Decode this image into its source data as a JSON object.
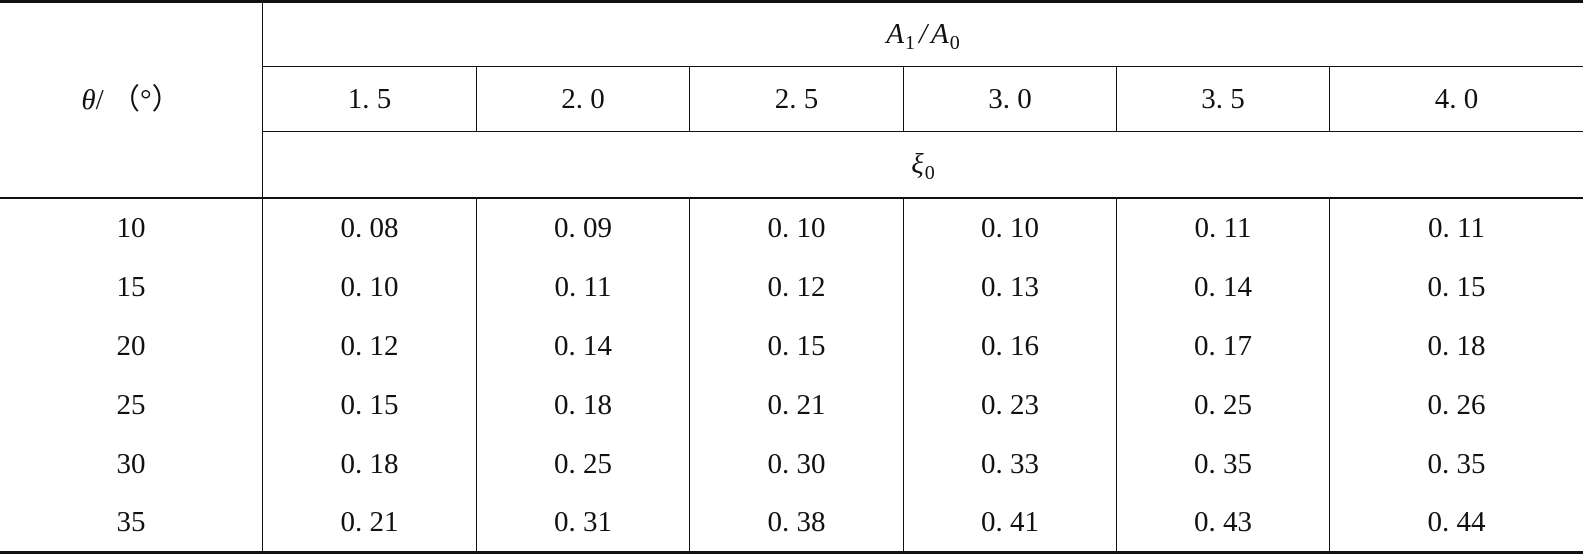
{
  "table": {
    "row_header": {
      "symbol": "θ",
      "unit": "/ （°）"
    },
    "ratio_header": {
      "numerator_symbol": "A",
      "numerator_subscript": "1",
      "slash": "/",
      "denominator_symbol": "A",
      "denominator_subscript": "0"
    },
    "coefficient_header": {
      "symbol": "ξ",
      "subscript": "0"
    },
    "columns": [
      "1. 5",
      "2. 0",
      "2. 5",
      "3. 0",
      "3. 5",
      "4. 0"
    ],
    "rows": [
      {
        "theta": "10",
        "values": [
          "0. 08",
          "0. 09",
          "0. 10",
          "0. 10",
          "0. 11",
          "0. 11"
        ]
      },
      {
        "theta": "15",
        "values": [
          "0. 10",
          "0. 11",
          "0. 12",
          "0. 13",
          "0. 14",
          "0. 15"
        ]
      },
      {
        "theta": "20",
        "values": [
          "0. 12",
          "0. 14",
          "0. 15",
          "0. 16",
          "0. 17",
          "0. 18"
        ]
      },
      {
        "theta": "25",
        "values": [
          "0. 15",
          "0. 18",
          "0. 21",
          "0. 23",
          "0. 25",
          "0. 26"
        ]
      },
      {
        "theta": "30",
        "values": [
          "0. 18",
          "0. 25",
          "0. 30",
          "0. 33",
          "0. 35",
          "0. 35"
        ]
      },
      {
        "theta": "35",
        "values": [
          "0. 21",
          "0. 31",
          "0. 38",
          "0. 41",
          "0. 43",
          "0. 44"
        ]
      }
    ]
  }
}
